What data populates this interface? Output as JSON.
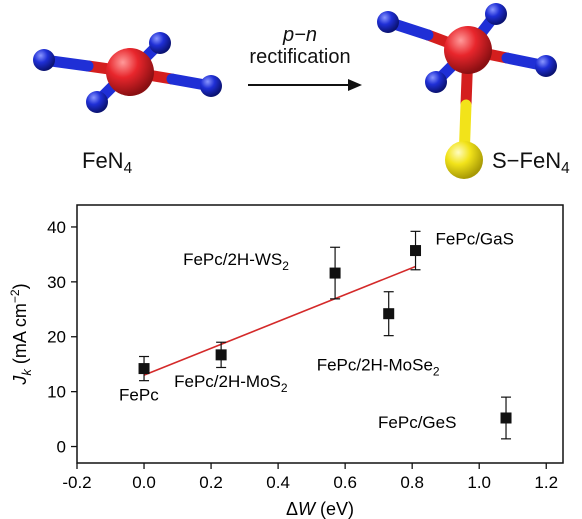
{
  "scheme": {
    "left_molecule_label": "FeN",
    "left_molecule_sub": "4",
    "arrow_label_line1": "p−n",
    "arrow_label_line2": "rectification",
    "right_molecule_label": "S−FeN",
    "right_molecule_sub": "4",
    "colors": {
      "fe": "#e8262c",
      "n": "#1f2fd6",
      "s": "#f2e31a",
      "bond_fe": "#d41e1e",
      "bond_n": "#1f2fd6"
    }
  },
  "chart_data": {
    "type": "scatter",
    "xlabel_prefix": "Δ",
    "xlabel_var": "W",
    "xlabel_unit": " (eV)",
    "ylabel_var": "J",
    "ylabel_sub": "k",
    "ylabel_unit": " (mA cm",
    "ylabel_sup": "−2",
    "xlim": [
      -0.2,
      1.25
    ],
    "ylim": [
      -3,
      44
    ],
    "xticks": [
      -0.2,
      0.0,
      0.2,
      0.4,
      0.6,
      0.8,
      1.0,
      1.2
    ],
    "xtick_labels": [
      "-0.2",
      "0.0",
      "0.2",
      "0.4",
      "0.6",
      "0.8",
      "1.0",
      "1.2"
    ],
    "yticks": [
      0,
      10,
      20,
      30,
      40
    ],
    "ytick_labels": [
      "0",
      "10",
      "20",
      "30",
      "40"
    ],
    "points": [
      {
        "x": 0.0,
        "y": 14.2,
        "err": 2.2,
        "label": "FePc",
        "sub": ""
      },
      {
        "x": 0.23,
        "y": 16.7,
        "err": 2.3,
        "label": "FePc/2H-MoS",
        "sub": "2"
      },
      {
        "x": 0.57,
        "y": 31.6,
        "err": 4.7,
        "label": "FePc/2H-WS",
        "sub": "2"
      },
      {
        "x": 0.73,
        "y": 24.2,
        "err": 4.0,
        "label": "FePc/2H-MoSe",
        "sub": "2"
      },
      {
        "x": 0.81,
        "y": 35.7,
        "err": 3.5,
        "label": "FePc/GaS",
        "sub": ""
      },
      {
        "x": 1.08,
        "y": 5.2,
        "err": 3.8,
        "label": "FePc/GeS",
        "sub": ""
      }
    ],
    "fit_line": {
      "x": [
        0.0,
        0.81
      ],
      "y": [
        13.0,
        32.8
      ],
      "color": "#d42a2a"
    },
    "grid": false,
    "legend": "none"
  }
}
